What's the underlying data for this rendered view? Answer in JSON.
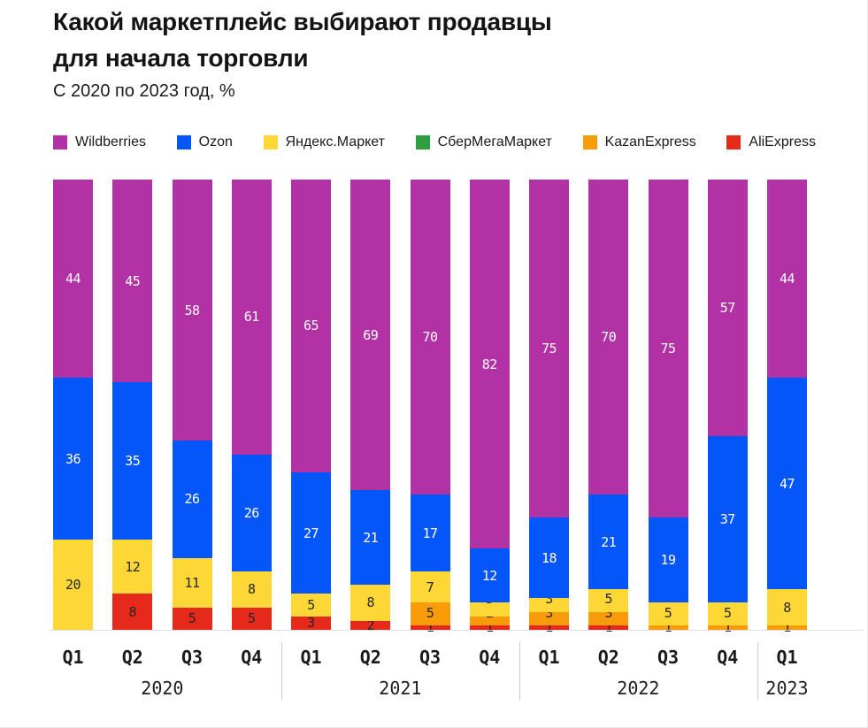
{
  "chart_data": {
    "type": "bar",
    "stacked": true,
    "unit": "%",
    "title": "Какой маркетплейс выбирают продавцы для начала торговли",
    "title_lines": [
      "Какой маркетплейс выбирают продавцы",
      "для начала торговли"
    ],
    "subtitle": "С 2020 по 2023 год, %",
    "categories": [
      "Q1",
      "Q2",
      "Q3",
      "Q4",
      "Q1",
      "Q2",
      "Q3",
      "Q4",
      "Q1",
      "Q2",
      "Q3",
      "Q4",
      "Q1"
    ],
    "year_groups": [
      {
        "label": "2020",
        "count": 4
      },
      {
        "label": "2021",
        "count": 4
      },
      {
        "label": "2022",
        "count": 4
      },
      {
        "label": "2023",
        "count": 1
      }
    ],
    "series": [
      {
        "name": "Wildberries",
        "color": "#b232a6",
        "label_color": "#ffffff",
        "values": [
          44,
          45,
          58,
          61,
          65,
          69,
          70,
          82,
          75,
          70,
          75,
          57,
          44
        ]
      },
      {
        "name": "Ozon",
        "color": "#0556f9",
        "label_color": "#ffffff",
        "values": [
          36,
          35,
          26,
          26,
          27,
          21,
          17,
          12,
          18,
          21,
          19,
          37,
          47
        ]
      },
      {
        "name": "Яндекс.Маркет",
        "color": "#fcd735",
        "label_color": "#262626",
        "values": [
          20,
          12,
          11,
          8,
          5,
          8,
          7,
          3,
          3,
          5,
          5,
          5,
          8
        ]
      },
      {
        "name": "СберМегаМаркет",
        "color": "#2e9e41",
        "label_color": "#262626",
        "values": [
          0,
          0,
          0,
          0,
          0,
          0,
          0,
          0,
          0,
          0,
          0,
          0,
          0
        ]
      },
      {
        "name": "KazanExpress",
        "color": "#f99c0b",
        "label_color": "#262626",
        "values": [
          0,
          0,
          0,
          0,
          0,
          0,
          5,
          2,
          3,
          3,
          1,
          1,
          1
        ]
      },
      {
        "name": "AliExpress",
        "color": "#e52a1c",
        "label_color": "#262626",
        "values": [
          0,
          8,
          5,
          5,
          3,
          2,
          1,
          1,
          1,
          1,
          0,
          0,
          0
        ]
      }
    ],
    "ylim": [
      0,
      100
    ],
    "grid": false,
    "legend_position": "top"
  }
}
